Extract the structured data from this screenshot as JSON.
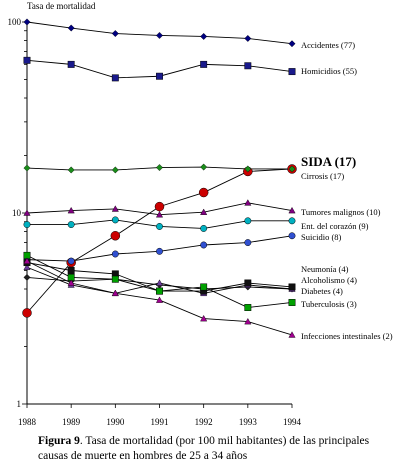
{
  "chart_data": {
    "type": "line",
    "y_scale": "log",
    "ylim": [
      1,
      100
    ],
    "ylabel": "Tasa de mortalidad",
    "y_ticks": [
      "1",
      "10",
      "100"
    ],
    "x": [
      "1988",
      "1989",
      "1990",
      "1991",
      "1992",
      "1993",
      "1994"
    ],
    "series": [
      {
        "name": "Accidentes (77)",
        "color": "#000080",
        "marker": "diamond",
        "values": [
          100,
          93,
          87,
          85,
          84,
          82,
          77
        ]
      },
      {
        "name": "Homicidios (55)",
        "color": "#1a1a8c",
        "marker": "square",
        "values": [
          63,
          60,
          51,
          52,
          60,
          59,
          55
        ]
      },
      {
        "name": "SIDA (17)",
        "color": "#cc0000",
        "marker": "circle",
        "emphasis": true,
        "values": [
          3.0,
          5.5,
          7.6,
          10.8,
          12.8,
          16.5,
          17
        ]
      },
      {
        "name": "Cirrosis (17)",
        "color": "#1a8c1a",
        "marker": "diamond",
        "values": [
          17.2,
          16.8,
          16.8,
          17.3,
          17.4,
          17.0,
          17
        ]
      },
      {
        "name": "Tumores malignos (10)",
        "color": "#800080",
        "marker": "triangle",
        "values": [
          10.0,
          10.3,
          10.5,
          9.8,
          10.1,
          11.3,
          10.3
        ]
      },
      {
        "name": "Ent. del corazón (9)",
        "color": "#00b0c0",
        "marker": "circle",
        "values": [
          8.7,
          8.7,
          9.2,
          8.5,
          8.3,
          9.1,
          9.1
        ]
      },
      {
        "name": "Suicidio (8)",
        "color": "#3050d0",
        "marker": "circle",
        "values": [
          5.7,
          5.6,
          6.1,
          6.3,
          6.8,
          7.0,
          7.6
        ]
      },
      {
        "name": "Neumonía (4)",
        "color": "#202020",
        "marker": "diamond",
        "values": [
          4.6,
          4.4,
          4.5,
          4.2,
          4.0,
          4.1,
          4.0
        ]
      },
      {
        "name": "Alcoholismo (4)",
        "color": "#6a3a9a",
        "marker": "triangle",
        "values": [
          5.2,
          4.2,
          3.8,
          4.3,
          3.8,
          4.2,
          4.0
        ]
      },
      {
        "name": "Diabetes (4)",
        "color": "#101010",
        "marker": "square",
        "values": [
          5.5,
          5.0,
          4.8,
          3.9,
          3.9,
          4.3,
          4.1
        ]
      },
      {
        "name": "Tuberculosis (3)",
        "color": "#00a000",
        "marker": "square",
        "values": [
          6.0,
          4.6,
          4.5,
          3.9,
          4.1,
          3.2,
          3.4
        ]
      },
      {
        "name": "Infecciones intestinales (2)",
        "color": "#a00090",
        "marker": "triangle",
        "values": [
          5.6,
          4.3,
          3.8,
          3.5,
          2.8,
          2.7,
          2.3
        ]
      }
    ]
  },
  "caption": {
    "label": "Figura 9",
    "text": ". Tasa de mortalidad (por 100 mil habitantes) de las principales causas de muerte en hombres de 25 a 34 años"
  }
}
